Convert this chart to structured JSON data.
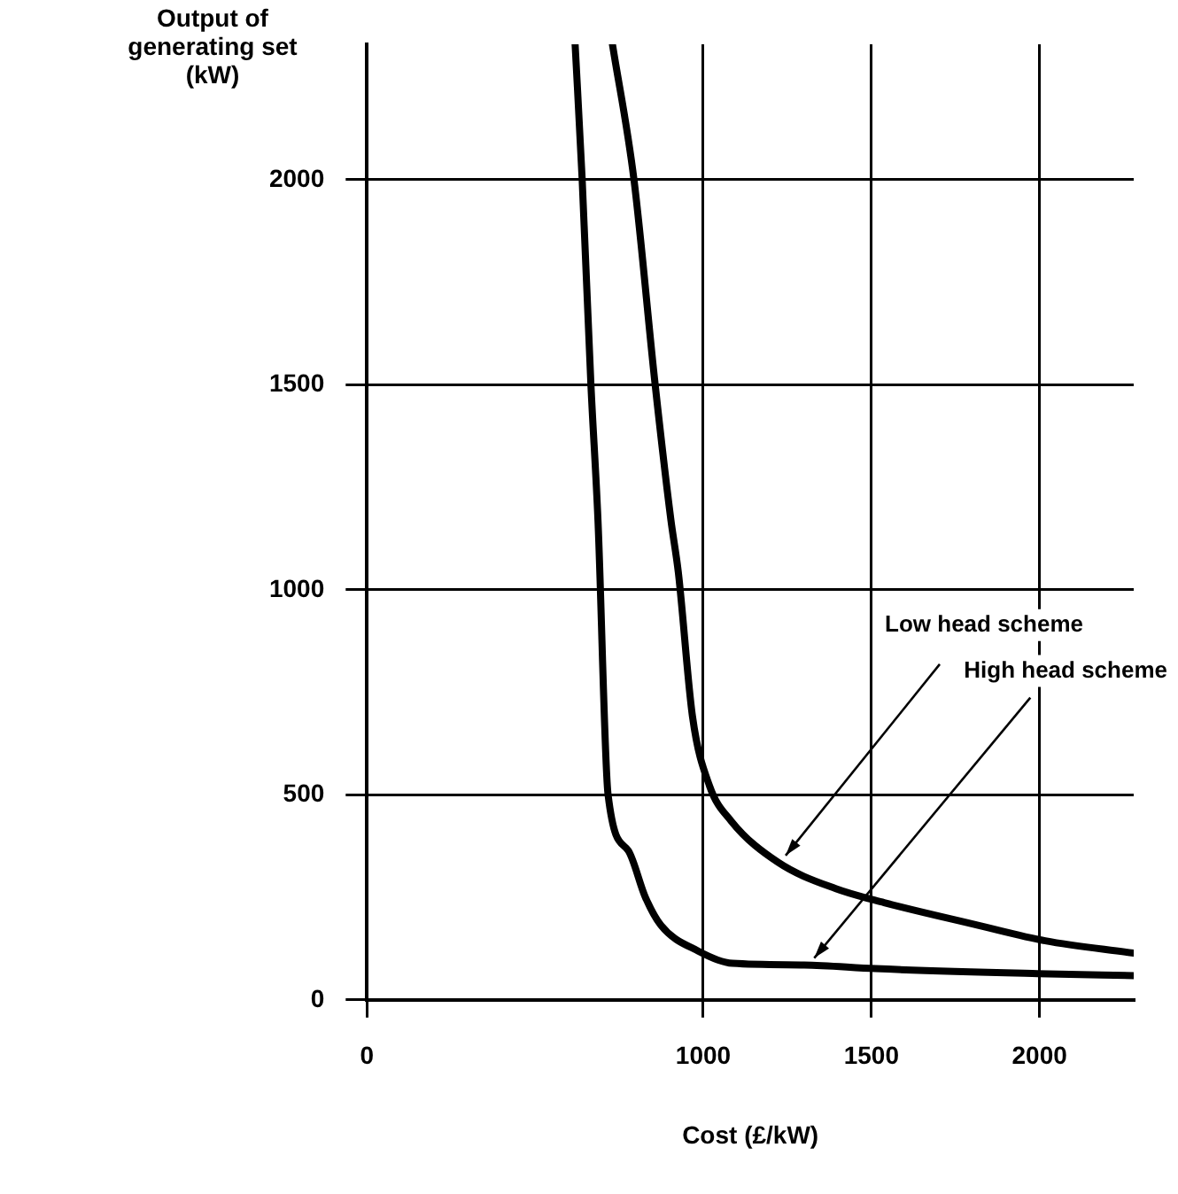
{
  "chart_data": {
    "type": "line",
    "xlabel": "Cost (£/kW)",
    "ylabel": "Output of generating set (kW)",
    "xlim": [
      0,
      2280
    ],
    "ylim": [
      0,
      2330
    ],
    "xticks": [
      0,
      1000,
      1500,
      2000
    ],
    "yticks": [
      0,
      500,
      1000,
      1500,
      2000
    ],
    "grid": true,
    "legend": false,
    "marker": "none",
    "line_style": "solid",
    "series": [
      {
        "color": "#000000",
        "x": [
          619,
          640,
          666,
          687,
          717,
          777,
          828,
          874,
          985,
          1087,
          1300,
          1513,
          1994,
          2280
        ],
        "values": [
          2330,
          2000,
          1500,
          1169,
          500,
          364,
          250,
          182,
          119,
          89,
          85,
          76,
          64,
          59
        ]
      },
      {
        "color": "#000000",
        "x": [
          730,
          794,
          857,
          904,
          926,
          968,
          1019,
          1083,
          1223,
          1394,
          1538,
          1817,
          2017,
          2280
        ],
        "values": [
          2330,
          2000,
          1500,
          1169,
          1042,
          691,
          521,
          436,
          335,
          271,
          237,
          182,
          144,
          114
        ]
      }
    ],
    "annotations": [
      {
        "text": "Low head scheme",
        "x": 1245,
        "y": 352
      },
      {
        "text": "High head scheme",
        "x": 1330,
        "y": 102
      }
    ]
  }
}
